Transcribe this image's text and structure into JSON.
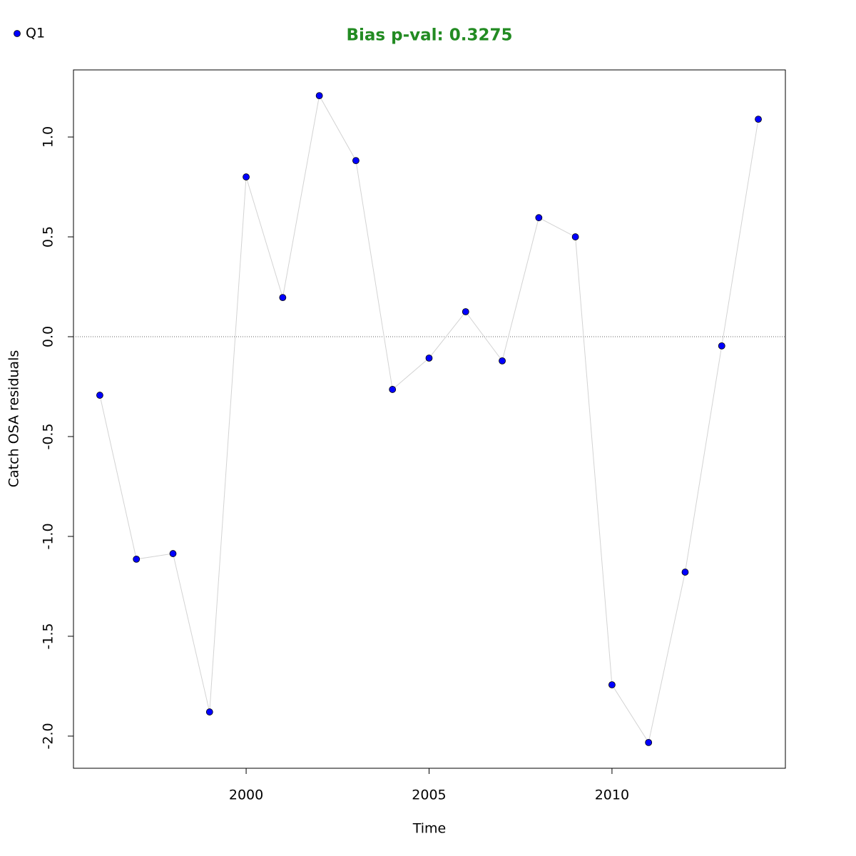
{
  "chart_data": {
    "type": "line",
    "title": "Bias p-val: 0.3275",
    "title_color": "#228b22",
    "x_label": "Time",
    "y_label": "Catch OSA residuals",
    "x": [
      1996,
      1997,
      1998,
      1999,
      2000,
      2001,
      2002,
      2003,
      2004,
      2005,
      2006,
      2007,
      2008,
      2009,
      2010,
      2011,
      2012,
      2013,
      2014
    ],
    "series": [
      {
        "name": "Q1",
        "color": "#0000ff",
        "line_color": "#d3d3d3",
        "values": [
          -0.293,
          -1.114,
          -1.086,
          -1.879,
          0.8,
          0.196,
          1.207,
          0.882,
          -0.264,
          -0.107,
          0.125,
          -0.121,
          0.596,
          0.5,
          -1.743,
          -2.032,
          -1.179,
          -0.046,
          1.089
        ]
      }
    ],
    "xlim": [
      1995.28,
      2014.74
    ],
    "xticks": [
      2000,
      2005,
      2010
    ],
    "ylim": [
      -2.161,
      1.336
    ],
    "yticks": [
      {
        "value": -2,
        "label": "-2.0"
      },
      -1.5,
      {
        "value": -1,
        "label": "-1.0"
      },
      -0.5,
      {
        "value": 0,
        "label": "0.0"
      },
      0.5,
      {
        "value": 1,
        "label": "1.0"
      }
    ],
    "hline": 0,
    "legend": "top-left"
  }
}
